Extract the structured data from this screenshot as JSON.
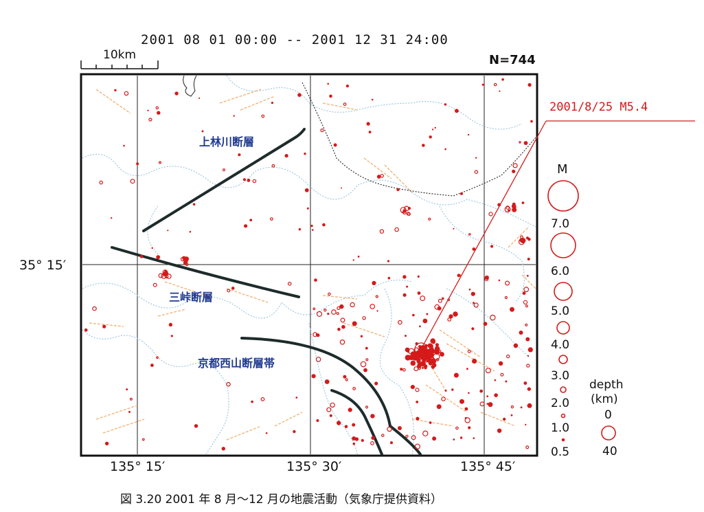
{
  "header": {
    "period": "2001 08 01 00:00 -- 2001 12 31 24:00",
    "count": "N=744",
    "scale_label": "10km"
  },
  "event_label": "2001/8/25  M5.4",
  "axes": {
    "lat_label": "35° 15′",
    "lon_labels": [
      "135° 15′",
      "135° 30′",
      "135° 45′"
    ]
  },
  "faults": {
    "kamibayashigawa": "上林川断層",
    "mitoge": "三峠断層",
    "nishiyama": "京都西山断層帯"
  },
  "legend": {
    "m_title": "M",
    "magnitudes": [
      "7.0",
      "6.0",
      "5.0",
      "4.0",
      "3.0",
      "2.0",
      "1.0",
      "0.5"
    ],
    "depth_title": "depth",
    "depth_unit": "(km)",
    "depth_values": [
      "0",
      "40"
    ]
  },
  "caption": "図 3.20  2001 年 8 月～12 月の地震活動（気象庁提供資料）",
  "colors": {
    "quake": "#d41a1a",
    "fault_line": "#1e2b2b",
    "boundary": "#9ec8e0",
    "active_fault": "#f0b070",
    "frame": "#111111",
    "fault_label": "#1f3a8f"
  }
}
